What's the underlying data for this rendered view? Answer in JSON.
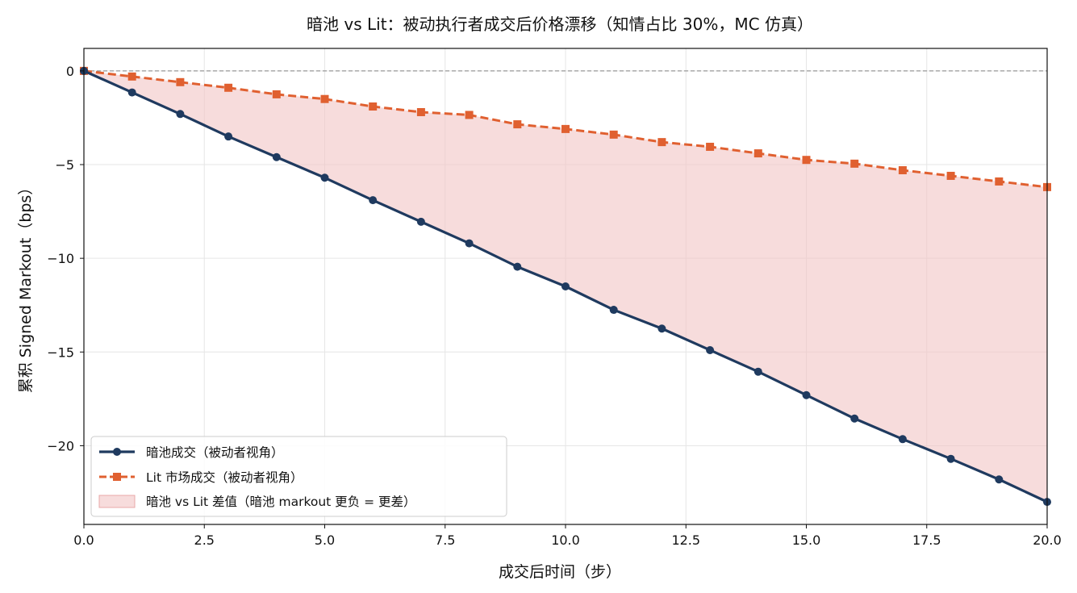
{
  "chart_data": {
    "type": "line",
    "title": "暗池 vs Lit：被动执行者成交后价格漂移（知情占比 30%，MC 仿真）",
    "xlabel": "成交后时间（步）",
    "ylabel": "累积 Signed Markout（bps）",
    "xlim": [
      0,
      20
    ],
    "ylim": [
      -24.2,
      1.2
    ],
    "xticks": [
      0,
      2.5,
      5,
      7.5,
      10,
      12.5,
      15,
      17.5,
      20
    ],
    "xtick_labels": [
      "0.0",
      "2.5",
      "5.0",
      "7.5",
      "10.0",
      "12.5",
      "15.0",
      "17.5",
      "20.0"
    ],
    "yticks": [
      0,
      -5,
      -10,
      -15,
      -20
    ],
    "ytick_labels": [
      "0",
      "−5",
      "−10",
      "−15",
      "−20"
    ],
    "grid": true,
    "reference_line_y": 0,
    "legend_position": "lower-left",
    "x": [
      0,
      1,
      2,
      3,
      4,
      5,
      6,
      7,
      8,
      9,
      10,
      11,
      12,
      13,
      14,
      15,
      16,
      17,
      18,
      19,
      20
    ],
    "series": [
      {
        "name": "暗池成交（被动者视角）",
        "color": "#1f3a5f",
        "marker": "circle",
        "linestyle": "solid",
        "values": [
          0,
          -1.15,
          -2.3,
          -3.5,
          -4.6,
          -5.7,
          -6.9,
          -8.05,
          -9.2,
          -10.45,
          -11.5,
          -12.75,
          -13.75,
          -14.9,
          -16.05,
          -17.3,
          -18.55,
          -19.65,
          -20.7,
          -21.8,
          -23.0
        ]
      },
      {
        "name": "Lit 市场成交（被动者视角）",
        "color": "#e06030",
        "marker": "square",
        "linestyle": "dashed",
        "values": [
          0,
          -0.3,
          -0.6,
          -0.9,
          -1.25,
          -1.5,
          -1.9,
          -2.2,
          -2.35,
          -2.85,
          -3.1,
          -3.4,
          -3.8,
          -4.05,
          -4.4,
          -4.75,
          -4.95,
          -5.3,
          -5.6,
          -5.9,
          -6.2
        ]
      }
    ],
    "fill_between": {
      "name": "暗池 vs Lit 差值（暗池 markout 更负 = 更差）",
      "color": "#f2c4c4"
    }
  }
}
